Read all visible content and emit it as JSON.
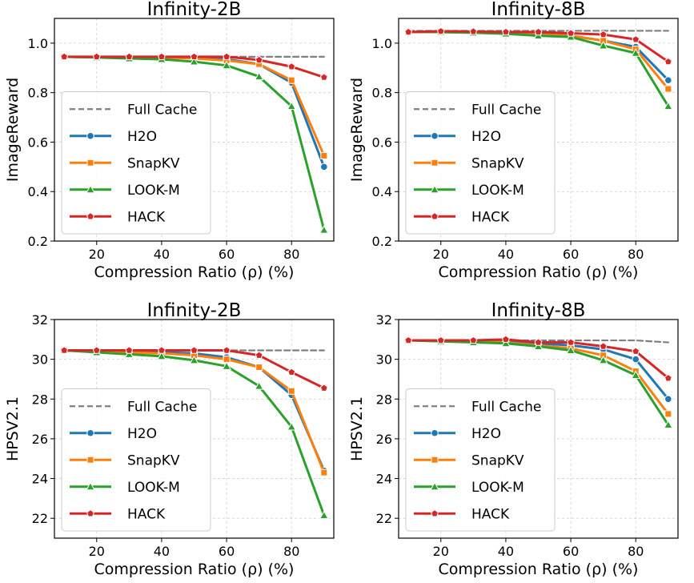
{
  "chart_data": [
    {
      "type": "line",
      "title": "Infinity-2B",
      "xlabel": "Compression Ratio (ρ) (%)",
      "ylabel": "ImageReward",
      "xlim": [
        7,
        93
      ],
      "ylim": [
        0.2,
        1.1
      ],
      "xticks": [
        20,
        40,
        60,
        80
      ],
      "yticks": [
        0.2,
        0.4,
        0.6,
        0.8,
        1.0
      ],
      "ytick_decimals": 1,
      "grid": true,
      "legend_position": "lower-left",
      "x": [
        10,
        20,
        30,
        40,
        50,
        60,
        70,
        80,
        90
      ],
      "series": [
        {
          "name": "Full Cache",
          "color": "#7f7f7f",
          "style": "dashed",
          "marker": "none",
          "values": [
            0.945,
            0.945,
            0.945,
            0.945,
            0.945,
            0.945,
            0.945,
            0.945,
            0.945
          ]
        },
        {
          "name": "H2O",
          "color": "#1f77b4",
          "style": "solid",
          "marker": "circle",
          "values": [
            0.945,
            0.943,
            0.942,
            0.942,
            0.94,
            0.935,
            0.915,
            0.84,
            0.5
          ]
        },
        {
          "name": "SnapKV",
          "color": "#ff7f0e",
          "style": "solid",
          "marker": "square",
          "values": [
            0.945,
            0.943,
            0.942,
            0.942,
            0.938,
            0.93,
            0.915,
            0.85,
            0.545
          ]
        },
        {
          "name": "LOOK-M",
          "color": "#2ca02c",
          "style": "solid",
          "marker": "triangle",
          "values": [
            0.945,
            0.942,
            0.938,
            0.935,
            0.925,
            0.91,
            0.865,
            0.745,
            0.245
          ]
        },
        {
          "name": "HACK",
          "color": "#d62728",
          "style": "solid",
          "marker": "pentagon",
          "values": [
            0.945,
            0.945,
            0.945,
            0.945,
            0.945,
            0.945,
            0.932,
            0.905,
            0.862
          ]
        }
      ]
    },
    {
      "type": "line",
      "title": "Infinity-8B",
      "xlabel": "Compression Ratio (ρ) (%)",
      "ylabel": "ImageReward",
      "xlim": [
        7,
        93
      ],
      "ylim": [
        0.2,
        1.1
      ],
      "xticks": [
        20,
        40,
        60,
        80
      ],
      "yticks": [
        0.2,
        0.4,
        0.6,
        0.8,
        1.0
      ],
      "ytick_decimals": 1,
      "grid": true,
      "legend_position": "lower-left",
      "x": [
        10,
        20,
        30,
        40,
        50,
        60,
        70,
        80,
        90
      ],
      "series": [
        {
          "name": "Full Cache",
          "color": "#7f7f7f",
          "style": "dashed",
          "marker": "none",
          "values": [
            1.05,
            1.05,
            1.05,
            1.05,
            1.05,
            1.05,
            1.05,
            1.05,
            1.05
          ]
        },
        {
          "name": "H2O",
          "color": "#1f77b4",
          "style": "solid",
          "marker": "circle",
          "values": [
            1.045,
            1.045,
            1.043,
            1.04,
            1.037,
            1.03,
            1.01,
            0.985,
            0.85
          ]
        },
        {
          "name": "SnapKV",
          "color": "#ff7f0e",
          "style": "solid",
          "marker": "square",
          "values": [
            1.045,
            1.045,
            1.043,
            1.04,
            1.035,
            1.03,
            1.01,
            0.975,
            0.815
          ]
        },
        {
          "name": "LOOK-M",
          "color": "#2ca02c",
          "style": "solid",
          "marker": "triangle",
          "values": [
            1.045,
            1.045,
            1.042,
            1.038,
            1.03,
            1.025,
            0.99,
            0.96,
            0.745
          ]
        },
        {
          "name": "HACK",
          "color": "#d62728",
          "style": "solid",
          "marker": "pentagon",
          "values": [
            1.045,
            1.048,
            1.047,
            1.045,
            1.045,
            1.04,
            1.035,
            1.015,
            0.925
          ]
        }
      ]
    },
    {
      "type": "line",
      "title": "Infinity-2B",
      "xlabel": "Compression Ratio (ρ) (%)",
      "ylabel": "HPSV2.1",
      "xlim": [
        7,
        93
      ],
      "ylim": [
        21,
        32
      ],
      "xticks": [
        20,
        40,
        60,
        80
      ],
      "yticks": [
        22,
        24,
        26,
        28,
        30,
        32
      ],
      "ytick_decimals": 0,
      "grid": true,
      "legend_position": "lower-left",
      "x": [
        10,
        20,
        30,
        40,
        50,
        60,
        70,
        80,
        90
      ],
      "series": [
        {
          "name": "Full Cache",
          "color": "#7f7f7f",
          "style": "dashed",
          "marker": "none",
          "values": [
            30.45,
            30.45,
            30.45,
            30.45,
            30.45,
            30.45,
            30.45,
            30.45,
            30.45
          ]
        },
        {
          "name": "H2O",
          "color": "#1f77b4",
          "style": "solid",
          "marker": "circle",
          "values": [
            30.45,
            30.4,
            30.35,
            30.35,
            30.3,
            30.1,
            29.6,
            28.2,
            24.4
          ]
        },
        {
          "name": "SnapKV",
          "color": "#ff7f0e",
          "style": "solid",
          "marker": "square",
          "values": [
            30.45,
            30.4,
            30.35,
            30.3,
            30.2,
            30.0,
            29.6,
            28.4,
            24.3
          ]
        },
        {
          "name": "LOOK-M",
          "color": "#2ca02c",
          "style": "solid",
          "marker": "triangle",
          "values": [
            30.45,
            30.35,
            30.25,
            30.15,
            29.95,
            29.65,
            28.65,
            26.6,
            22.15
          ]
        },
        {
          "name": "HACK",
          "color": "#d62728",
          "style": "solid",
          "marker": "pentagon",
          "values": [
            30.45,
            30.45,
            30.45,
            30.45,
            30.45,
            30.45,
            30.2,
            29.35,
            28.55
          ]
        }
      ]
    },
    {
      "type": "line",
      "title": "Infinity-8B",
      "xlabel": "Compression Ratio (ρ) (%)",
      "ylabel": "HPSV2.1",
      "xlim": [
        7,
        93
      ],
      "ylim": [
        21,
        32
      ],
      "xticks": [
        20,
        40,
        60,
        80
      ],
      "yticks": [
        22,
        24,
        26,
        28,
        30,
        32
      ],
      "ytick_decimals": 0,
      "grid": true,
      "legend_position": "lower-left",
      "x": [
        10,
        20,
        30,
        40,
        50,
        60,
        70,
        80,
        90
      ],
      "series": [
        {
          "name": "Full Cache",
          "color": "#7f7f7f",
          "style": "dashed",
          "marker": "none",
          "values": [
            30.95,
            30.95,
            30.95,
            30.95,
            30.95,
            30.95,
            30.95,
            30.95,
            30.85
          ]
        },
        {
          "name": "H2O",
          "color": "#1f77b4",
          "style": "solid",
          "marker": "circle",
          "values": [
            30.95,
            30.95,
            30.9,
            30.9,
            30.8,
            30.7,
            30.5,
            30.0,
            28.0
          ]
        },
        {
          "name": "SnapKV",
          "color": "#ff7f0e",
          "style": "solid",
          "marker": "square",
          "values": [
            30.95,
            30.95,
            30.9,
            30.85,
            30.7,
            30.55,
            30.2,
            29.4,
            27.25
          ]
        },
        {
          "name": "LOOK-M",
          "color": "#2ca02c",
          "style": "solid",
          "marker": "triangle",
          "values": [
            30.95,
            30.9,
            30.85,
            30.8,
            30.65,
            30.45,
            29.95,
            29.2,
            26.7
          ]
        },
        {
          "name": "HACK",
          "color": "#d62728",
          "style": "solid",
          "marker": "pentagon",
          "values": [
            30.95,
            30.95,
            30.95,
            31.0,
            30.85,
            30.85,
            30.65,
            30.4,
            29.05
          ]
        }
      ]
    }
  ]
}
